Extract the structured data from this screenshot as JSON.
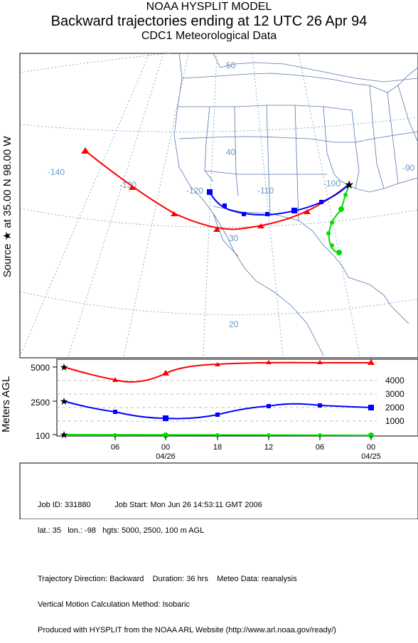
{
  "titles": {
    "line1": "NOAA HYSPLIT MODEL",
    "line2": "Backward trajectories ending at 12 UTC 26 Apr 94",
    "line3": "CDC1 Meteorological Data"
  },
  "source_label": "Source ★ at   35.00 N   98.00 W",
  "map": {
    "lon_labels": [
      "-140",
      "-130",
      "-120",
      "-110",
      "-100",
      "-90"
    ],
    "lat_labels": [
      "50",
      "40",
      "30",
      "20"
    ]
  },
  "trajectories": [
    {
      "color": "#ff0000",
      "marker": "triangle",
      "height_agl": 5000
    },
    {
      "color": "#0000ff",
      "marker": "square",
      "height_agl": 2500
    },
    {
      "color": "#00dd00",
      "marker": "circle",
      "height_agl": 100
    }
  ],
  "vertical_panel": {
    "ylabel": "Meters AGL",
    "left_ticks": [
      "5000",
      "2500",
      "100"
    ],
    "right_ticks": [
      "4000",
      "3000",
      "2000",
      "1000"
    ],
    "x_hours": [
      "06",
      "00",
      "18",
      "12",
      "06",
      "00"
    ],
    "x_dates": [
      "04/26",
      "04/25"
    ]
  },
  "footer": {
    "line1": "Job ID: 331880           Job Start: Mon Jun 26 14:53:11 GMT 2006",
    "line2": "lat.: 35   lon.: -98   hgts: 5000, 2500, 100 m AGL",
    "line3": "Trajectory Direction: Backward    Duration: 36 hrs    Meteo Data: reanalysis",
    "line4": "Vertical Motion Calculation Method: Isobaric",
    "line5": "Produced with HYSPLIT from the NOAA ARL Website (http://www.arl.noaa.gov/ready/)"
  }
}
